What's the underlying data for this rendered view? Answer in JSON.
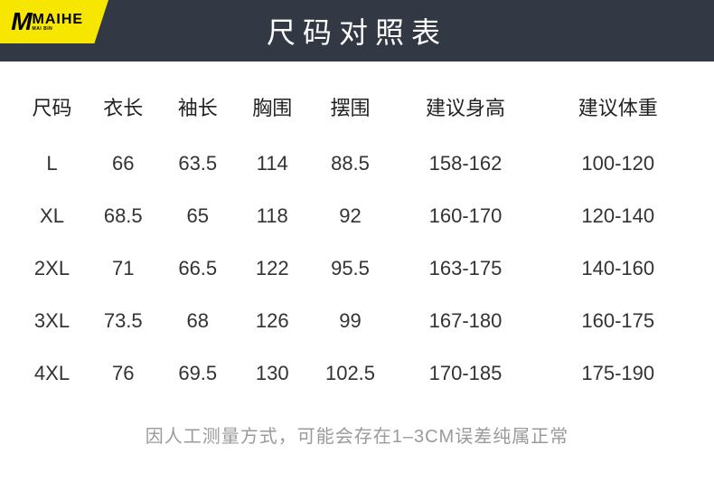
{
  "logo": {
    "m": "M",
    "brand": "MAIHE",
    "sub": "MAI BIN"
  },
  "title": "尺码对照表",
  "columns": [
    "尺码",
    "衣长",
    "袖长",
    "胸围",
    "摆围",
    "建议身高",
    "建议体重"
  ],
  "rows": [
    [
      "L",
      "66",
      "63.5",
      "114",
      "88.5",
      "158-162",
      "100-120"
    ],
    [
      "XL",
      "68.5",
      "65",
      "118",
      "92",
      "160-170",
      "120-140"
    ],
    [
      "2XL",
      "71",
      "66.5",
      "122",
      "95.5",
      "163-175",
      "140-160"
    ],
    [
      "3XL",
      "73.5",
      "68",
      "126",
      "99",
      "167-180",
      "160-175"
    ],
    [
      "4XL",
      "76",
      "69.5",
      "130",
      "102.5",
      "170-185",
      "175-190"
    ]
  ],
  "footer": "因人工测量方式，可能会存在1–3CM误差纯属正常",
  "style": {
    "title_bg": "#323844",
    "title_color": "#ffffff",
    "title_fontsize": 32,
    "header_fontsize": 22,
    "cell_fontsize": 22,
    "footer_color": "#9a9a9a",
    "footer_fontsize": 20,
    "logo_bg": "#f7e600",
    "logo_fg": "#000000",
    "page_bg": "#ffffff"
  }
}
